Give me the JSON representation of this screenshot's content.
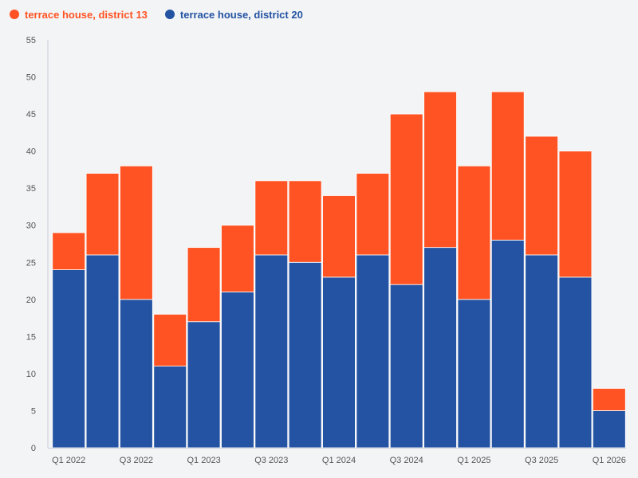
{
  "chart_data": {
    "type": "bar",
    "stacked": true,
    "title": "",
    "xlabel": "",
    "ylabel": "",
    "ylim": [
      0,
      55
    ],
    "y_ticks": [
      0,
      5,
      10,
      15,
      20,
      25,
      30,
      35,
      40,
      45,
      50,
      55
    ],
    "grid": false,
    "legend_position": "top-left",
    "categories": [
      "Q1 2022",
      "Q2 2022",
      "Q3 2022",
      "Q4 2022",
      "Q1 2023",
      "Q2 2023",
      "Q3 2023",
      "Q4 2023",
      "Q1 2024",
      "Q2 2024",
      "Q3 2024",
      "Q4 2024",
      "Q1 2025",
      "Q2 2025",
      "Q3 2025",
      "Q4 2025",
      "Q1 2026"
    ],
    "x_tick_labels": [
      "Q1 2022",
      "",
      "Q3 2022",
      "",
      "Q1 2023",
      "",
      "Q3 2023",
      "",
      "Q1 2024",
      "",
      "Q3 2024",
      "",
      "Q1 2025",
      "",
      "Q3 2025",
      "",
      "Q1 2026"
    ],
    "series": [
      {
        "name": "terrace house, district 20",
        "color": "#2353a2",
        "values": [
          24,
          26,
          20,
          11,
          17,
          21,
          26,
          25,
          23,
          26,
          22,
          27,
          20,
          28,
          26,
          23,
          5
        ]
      },
      {
        "name": "terrace house, district 13",
        "color": "#ff5323",
        "values": [
          5,
          11,
          18,
          7,
          10,
          9,
          10,
          11,
          11,
          11,
          23,
          21,
          18,
          20,
          16,
          17,
          3
        ]
      }
    ],
    "legend_order": [
      1,
      0
    ]
  },
  "colors": {
    "background": "#f3f4f6",
    "axis_text": "#555555",
    "axis_line": "#c8ccd8"
  }
}
